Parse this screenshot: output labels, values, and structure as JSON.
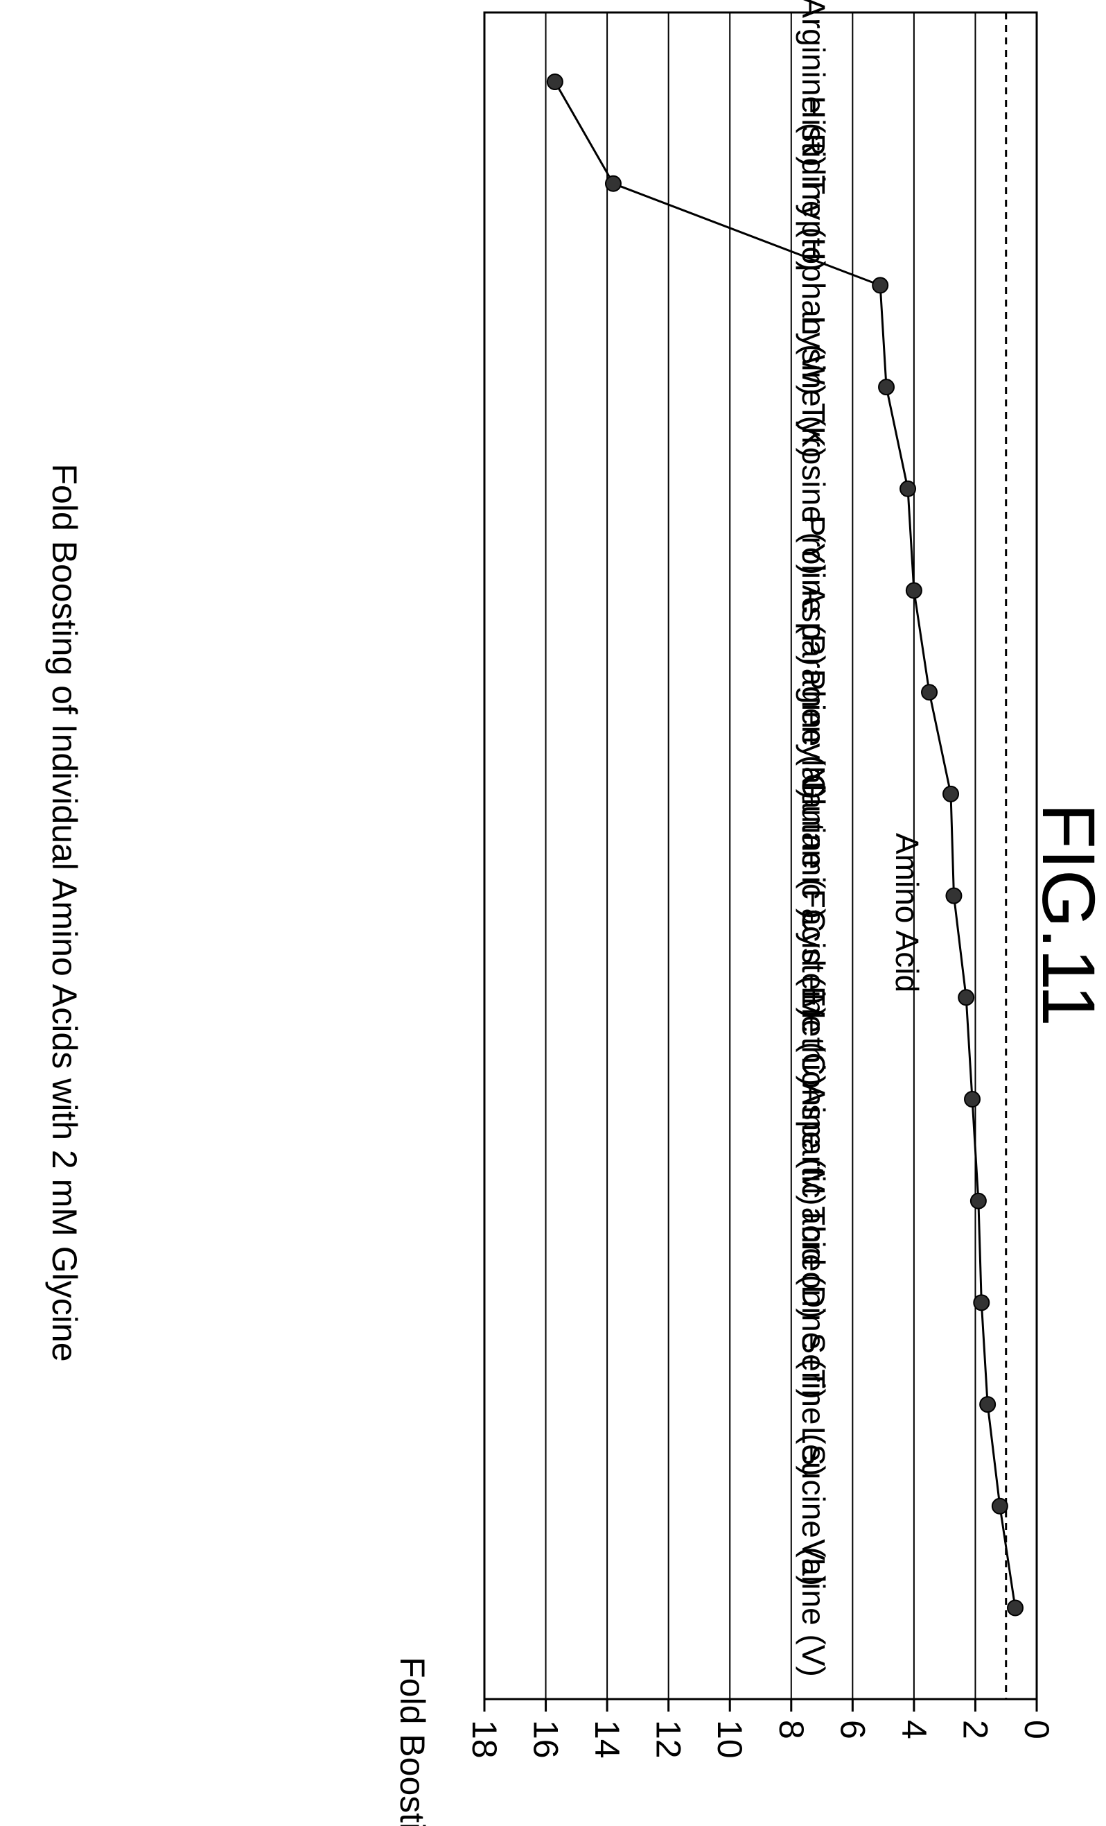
{
  "figure_label": "FIG.11",
  "chart_data": {
    "type": "line",
    "title": "Fold Boosting of Individual Amino Acids with 2 mM Glycine",
    "xlabel": "Amino Acid",
    "ylabel": "Fold Boosting",
    "categories": [
      "Arginine (R)",
      "Histidine (H)",
      "Tryptophan (W)",
      "Lysine (K)",
      "Tyrosine (Y)",
      "Proline (P)",
      "Asparagine (N)",
      "Phenylalanine (F)",
      "Glutamic acid (E)",
      "Cysteine (C)",
      "Methionine (M)",
      "Aspartic acid (D)",
      "Threonine (T)",
      "Serine (S)",
      "Leucine (L)",
      "Valine (V)"
    ],
    "values": [
      15.7,
      13.8,
      5.1,
      4.9,
      4.2,
      4.0,
      3.5,
      2.8,
      2.7,
      2.3,
      2.1,
      1.9,
      1.8,
      1.6,
      1.2,
      0.7
    ],
    "reference_line": 1,
    "ylim": [
      0,
      18
    ],
    "yticks": [
      0,
      2,
      4,
      6,
      8,
      10,
      12,
      14,
      16,
      18
    ],
    "grid": true,
    "orientation": "rotated 90 degrees clockwise"
  }
}
